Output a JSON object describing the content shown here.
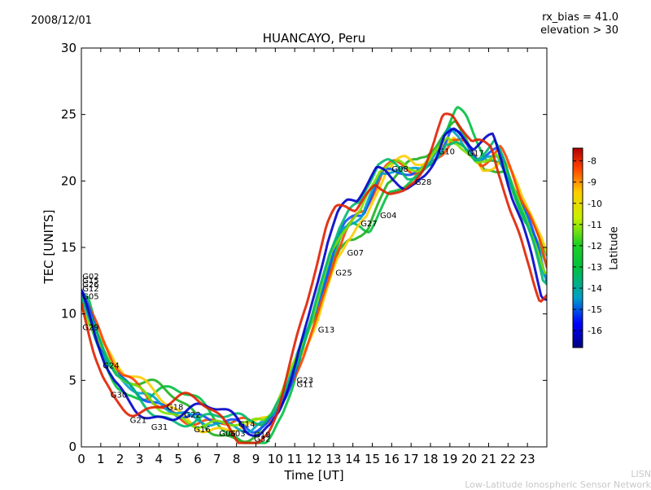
{
  "header": {
    "date": "2008/12/01",
    "rx_bias": "rx_bias = 41.0",
    "elevation": "elevation > 30"
  },
  "chart_data": {
    "type": "scatter",
    "title": "HUANCAYO, Peru",
    "xlabel": "Time [UT]",
    "ylabel": "TEC [UNITS]",
    "xlim": [
      0,
      24
    ],
    "ylim": [
      0,
      30
    ],
    "xticks": [
      0,
      1,
      2,
      3,
      4,
      5,
      6,
      7,
      8,
      9,
      10,
      11,
      12,
      13,
      14,
      15,
      16,
      17,
      18,
      19,
      20,
      21,
      22,
      23
    ],
    "yticks": [
      0,
      5,
      10,
      15,
      20,
      25,
      30
    ],
    "colorbar": {
      "label": "Latitude",
      "range": [
        -16.8,
        -7.4
      ],
      "ticks": [
        -8,
        -9,
        -10,
        -11,
        -12,
        -13,
        -14,
        -15,
        -16
      ]
    },
    "satellite_labels": [
      {
        "name": "G02",
        "x": 0.05,
        "y": 12.6
      },
      {
        "name": "G15",
        "x": 0.05,
        "y": 12.3
      },
      {
        "name": "G26",
        "x": 0.05,
        "y": 12.0
      },
      {
        "name": "G12",
        "x": 0.05,
        "y": 11.7
      },
      {
        "name": "G05",
        "x": 0.05,
        "y": 11.1
      },
      {
        "name": "G29",
        "x": 0.05,
        "y": 8.8
      },
      {
        "name": "G24",
        "x": 1.1,
        "y": 5.9
      },
      {
        "name": "G30",
        "x": 1.5,
        "y": 3.7
      },
      {
        "name": "G21",
        "x": 2.5,
        "y": 1.8
      },
      {
        "name": "G31",
        "x": 3.6,
        "y": 1.3
      },
      {
        "name": "G18",
        "x": 4.4,
        "y": 2.8
      },
      {
        "name": "G22",
        "x": 5.3,
        "y": 2.2
      },
      {
        "name": "G16",
        "x": 5.8,
        "y": 1.1
      },
      {
        "name": "G06",
        "x": 7.1,
        "y": 0.8
      },
      {
        "name": "G03",
        "x": 7.6,
        "y": 0.8
      },
      {
        "name": "G14",
        "x": 8.1,
        "y": 1.5
      },
      {
        "name": "G19",
        "x": 8.9,
        "y": 0.7
      },
      {
        "name": "G32",
        "x": 8.9,
        "y": 0.4
      },
      {
        "name": "G23",
        "x": 11.1,
        "y": 4.8
      },
      {
        "name": "G11",
        "x": 11.1,
        "y": 4.5
      },
      {
        "name": "G13",
        "x": 12.2,
        "y": 8.6
      },
      {
        "name": "G25",
        "x": 13.1,
        "y": 12.9
      },
      {
        "name": "G07",
        "x": 13.7,
        "y": 14.4
      },
      {
        "name": "G27",
        "x": 14.4,
        "y": 16.6
      },
      {
        "name": "G04",
        "x": 15.4,
        "y": 17.2
      },
      {
        "name": "G08",
        "x": 16.0,
        "y": 20.7
      },
      {
        "name": "G28",
        "x": 17.2,
        "y": 19.7
      },
      {
        "name": "G10",
        "x": 18.4,
        "y": 22.0
      },
      {
        "name": "G17",
        "x": 19.9,
        "y": 21.9
      }
    ]
  },
  "credit": {
    "line1": "LISN",
    "line2": "Low-Latitude Ionospheric Sensor Network"
  }
}
